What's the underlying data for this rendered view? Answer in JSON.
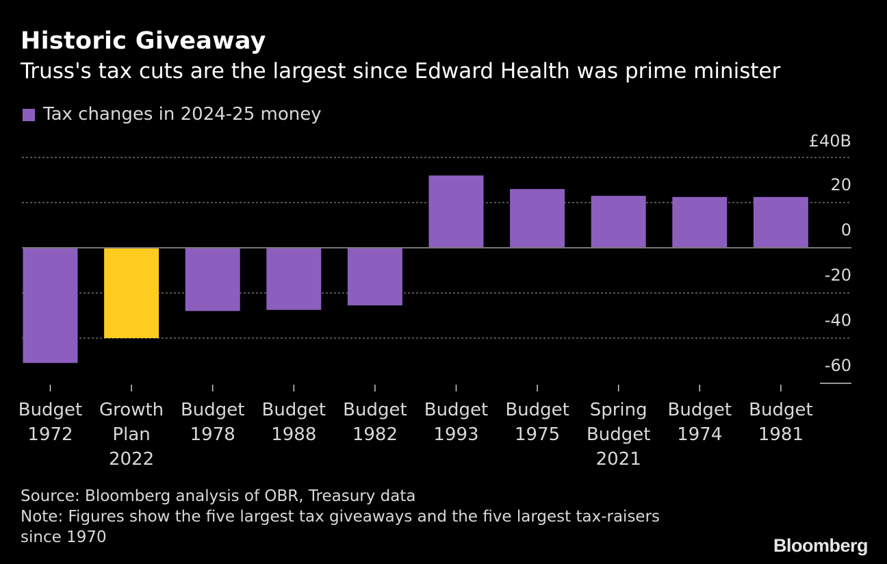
{
  "header": {
    "title": "Historic Giveaway",
    "subtitle": "Truss's tax cuts are the largest since Edward Health was prime minister"
  },
  "legend": {
    "label": "Tax changes in 2024-25 money",
    "color": "#8c5fbf"
  },
  "colors": {
    "default_bar": "#8c5fbf",
    "highlight_bar": "#fecb1f",
    "background": "#000000",
    "grid": "#888888",
    "text": "#d9d9d9"
  },
  "chart_data": {
    "type": "bar",
    "title": "Historic Giveaway",
    "subtitle": "Truss's tax cuts are the largest since Edward Health was prime minister",
    "categories": [
      [
        "Budget",
        "1972"
      ],
      [
        "Growth",
        "Plan",
        "2022"
      ],
      [
        "Budget",
        "1978"
      ],
      [
        "Budget",
        "1988"
      ],
      [
        "Budget",
        "1982"
      ],
      [
        "Budget",
        "1993"
      ],
      [
        "Budget",
        "1975"
      ],
      [
        "Spring",
        "Budget",
        "2021"
      ],
      [
        "Budget",
        "1974"
      ],
      [
        "Budget",
        "1981"
      ]
    ],
    "series": [
      {
        "name": "Tax changes in 2024-25 money",
        "values": [
          -51,
          -40,
          -28,
          -27.5,
          -25.5,
          32,
          26,
          23,
          22.5,
          22.5
        ]
      }
    ],
    "highlight_index": 1,
    "ylim": [
      -60,
      40
    ],
    "yticks": [
      40,
      20,
      0,
      -20,
      -40,
      -60
    ],
    "ytick_labels": [
      "£40B",
      "20",
      "0",
      "-20",
      "-40",
      "-60"
    ],
    "xlabel": "",
    "ylabel": "",
    "grid": true,
    "axis_position": "right"
  },
  "footer": {
    "source": "Source: Bloomberg analysis of OBR, Treasury data",
    "note_line1": "Note: Figures show the five largest tax giveaways and the five largest tax-raisers",
    "note_line2": "since 1970"
  },
  "brand": "Bloomberg"
}
